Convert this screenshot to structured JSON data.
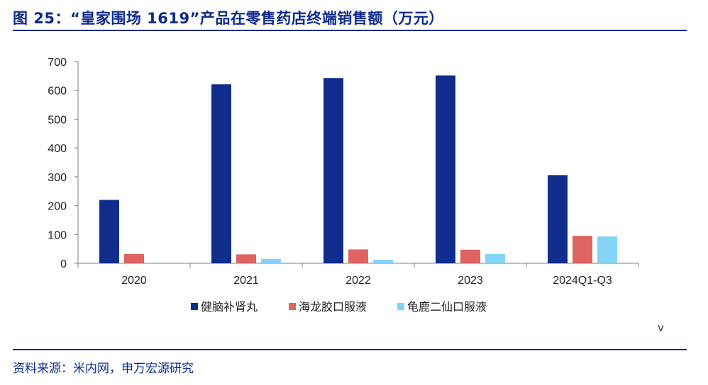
{
  "figure": {
    "title": "图 25：“皇家围场 1619”产品在零售药店终端销售额（万元）",
    "source": "资料来源：米内网，申万宏源研究",
    "stray_mark": "v"
  },
  "colors": {
    "accent": "#0e2a8a",
    "series": [
      "#0f2e8c",
      "#de6461",
      "#82d4f6"
    ]
  },
  "chart_data": {
    "type": "bar",
    "title": "",
    "xlabel": "",
    "ylabel": "",
    "categories": [
      "2020",
      "2021",
      "2022",
      "2023",
      "2024Q1-Q3"
    ],
    "series": [
      {
        "name": "健脑补肾丸",
        "values": [
          220,
          621,
          643,
          652,
          306
        ]
      },
      {
        "name": "海龙胶口服液",
        "values": [
          32,
          31,
          48,
          47,
          95
        ]
      },
      {
        "name": "龟鹿二仙口服液",
        "values": [
          0,
          15,
          12,
          32,
          93
        ]
      }
    ],
    "ylim": [
      0,
      700
    ],
    "yticks": [
      0,
      100,
      200,
      300,
      400,
      500,
      600,
      700
    ],
    "grid": false,
    "legend": "bottom"
  }
}
